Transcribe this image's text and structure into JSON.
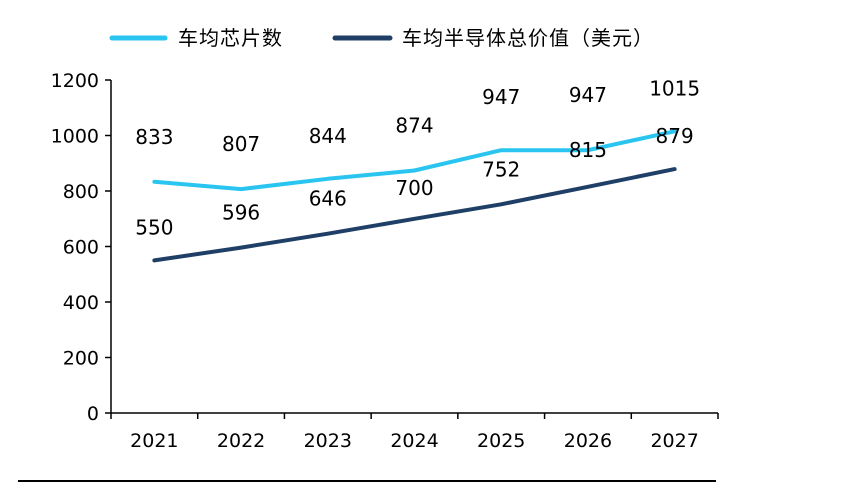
{
  "chart_data": {
    "type": "line",
    "categories": [
      "2021",
      "2022",
      "2023",
      "2024",
      "2025",
      "2026",
      "2027"
    ],
    "series": [
      {
        "name": "车均芯片数",
        "color": "#29C5F0",
        "values": [
          833,
          807,
          844,
          874,
          947,
          947,
          1015
        ]
      },
      {
        "name": "车均半导体总价值（美元）",
        "color": "#1F3F66",
        "values": [
          550,
          596,
          646,
          700,
          752,
          815,
          879
        ]
      }
    ],
    "ylim": [
      0,
      1200
    ],
    "yticks": [
      0,
      200,
      400,
      600,
      800,
      1000,
      1200
    ],
    "grid": false,
    "legend": "top",
    "data_labels": true
  }
}
